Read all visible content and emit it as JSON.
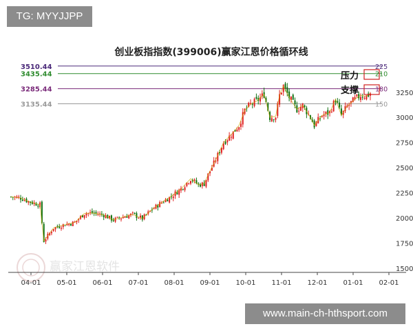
{
  "tag_label": "TG: MYYJJPP",
  "url_banner": "www.main-ch-hthsport.com",
  "watermark_text": "赢家江恩软件",
  "colors": {
    "up": "#e02020",
    "down": "#107010",
    "ma": "#c8a800",
    "lines": [
      "#4b2a7a",
      "#2e8b2e",
      "#7a2a7a",
      "#999999"
    ]
  },
  "chart_data": {
    "type": "candlestick",
    "title": "创业板指指数(399006)赢家江恩价格循环线",
    "x_ticks": [
      "04-01",
      "05-01",
      "06-01",
      "07-01",
      "08-01",
      "09-01",
      "10-01",
      "11-01",
      "12-01",
      "01-01",
      "02-01"
    ],
    "y_ticks": [
      1500,
      1750,
      2000,
      2250,
      2500,
      2750,
      3000,
      3250
    ],
    "ylim": [
      1500,
      3550
    ],
    "grid": false,
    "levels": [
      {
        "price": "3510.44",
        "value": 3510.44,
        "cycle": "225"
      },
      {
        "price": "3435.44",
        "value": 3435.44,
        "cycle": "210"
      },
      {
        "price": "3285.44",
        "value": 3285.44,
        "cycle": "180"
      },
      {
        "price": "3135.44",
        "value": 3135.44,
        "cycle": "150"
      }
    ],
    "annotations": {
      "resistance": "压力",
      "support": "支撑"
    },
    "price_path": [
      [
        0,
        2210
      ],
      [
        5,
        2200
      ],
      [
        9,
        2165
      ],
      [
        15,
        2130
      ],
      [
        17,
        1770
      ],
      [
        22,
        1900
      ],
      [
        28,
        1935
      ],
      [
        33,
        1955
      ],
      [
        38,
        2045
      ],
      [
        42,
        2050
      ],
      [
        48,
        2030
      ],
      [
        53,
        1980
      ],
      [
        58,
        2010
      ],
      [
        63,
        2035
      ],
      [
        68,
        1995
      ],
      [
        73,
        2085
      ],
      [
        78,
        2155
      ],
      [
        83,
        2215
      ],
      [
        88,
        2290
      ],
      [
        93,
        2390
      ],
      [
        97,
        2330
      ],
      [
        100,
        2340
      ],
      [
        102,
        2430
      ],
      [
        106,
        2580
      ],
      [
        110,
        2750
      ],
      [
        115,
        2850
      ],
      [
        118,
        2920
      ],
      [
        121,
        3070
      ],
      [
        124,
        3130
      ],
      [
        127,
        3160
      ],
      [
        131,
        3230
      ],
      [
        134,
        3000
      ],
      [
        137,
        3010
      ],
      [
        139,
        3220
      ],
      [
        141,
        3310
      ],
      [
        144,
        3200
      ],
      [
        148,
        3080
      ],
      [
        151,
        3120
      ],
      [
        155,
        3000
      ],
      [
        157,
        2920
      ],
      [
        161,
        3020
      ],
      [
        165,
        3050
      ],
      [
        168,
        3180
      ],
      [
        171,
        3020
      ],
      [
        174,
        3110
      ],
      [
        178,
        3180
      ],
      [
        181,
        3220
      ],
      [
        184,
        3210
      ],
      [
        186,
        3240
      ]
    ]
  }
}
